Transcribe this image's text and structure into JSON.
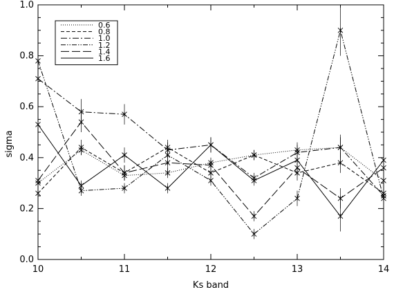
{
  "chart_data": {
    "type": "line",
    "title": "",
    "xlabel": "Ks band",
    "ylabel": "sigma",
    "xlim": [
      10,
      14
    ],
    "ylim": [
      0.0,
      1.0
    ],
    "x": [
      10,
      10.5,
      11,
      11.5,
      12,
      12.5,
      13,
      13.5,
      14
    ],
    "x_ticks": [
      "10",
      "11",
      "12",
      "13",
      "14"
    ],
    "y_ticks": [
      "0.0",
      "0.2",
      "0.4",
      "0.6",
      "0.8",
      "1.0"
    ],
    "legend_position": "top-left",
    "grid": false,
    "series": [
      {
        "name": "0.6",
        "dash": "dotted",
        "values": [
          0.3,
          0.43,
          0.33,
          0.34,
          0.38,
          0.41,
          0.43,
          0.44,
          0.31
        ],
        "errors": [
          0.02,
          0.02,
          0.02,
          0.02,
          0.02,
          0.02,
          0.03,
          0.04,
          0.02
        ]
      },
      {
        "name": "0.8",
        "dash": "dashed",
        "values": [
          0.26,
          0.44,
          0.34,
          0.44,
          0.34,
          0.41,
          0.34,
          0.38,
          0.26
        ],
        "errors": [
          0.02,
          0.03,
          0.03,
          0.03,
          0.02,
          0.02,
          0.03,
          0.04,
          0.02
        ]
      },
      {
        "name": "1.0",
        "dash": "dash-dot",
        "values": [
          0.71,
          0.58,
          0.57,
          0.43,
          0.45,
          0.32,
          0.42,
          0.44,
          0.25
        ],
        "errors": [
          0.04,
          0.05,
          0.04,
          0.03,
          0.03,
          0.02,
          0.03,
          0.05,
          0.02
        ]
      },
      {
        "name": "1.2",
        "dash": "dash-dot-dot",
        "values": [
          0.78,
          0.27,
          0.28,
          0.41,
          0.31,
          0.1,
          0.24,
          0.9,
          0.24
        ],
        "errors": [
          0.05,
          0.02,
          0.02,
          0.03,
          0.02,
          0.02,
          0.03,
          0.1,
          0.02
        ]
      },
      {
        "name": "1.4",
        "dash": "long-dash",
        "values": [
          0.31,
          0.54,
          0.34,
          0.38,
          0.37,
          0.17,
          0.36,
          0.24,
          0.36
        ],
        "errors": [
          0.02,
          0.04,
          0.03,
          0.03,
          0.02,
          0.02,
          0.03,
          0.04,
          0.02
        ]
      },
      {
        "name": "1.6",
        "dash": "solid",
        "values": [
          0.53,
          0.29,
          0.41,
          0.28,
          0.45,
          0.31,
          0.39,
          0.17,
          0.39
        ],
        "errors": [
          0.04,
          0.02,
          0.03,
          0.02,
          0.03,
          0.02,
          0.03,
          0.06,
          0.02
        ]
      }
    ]
  }
}
